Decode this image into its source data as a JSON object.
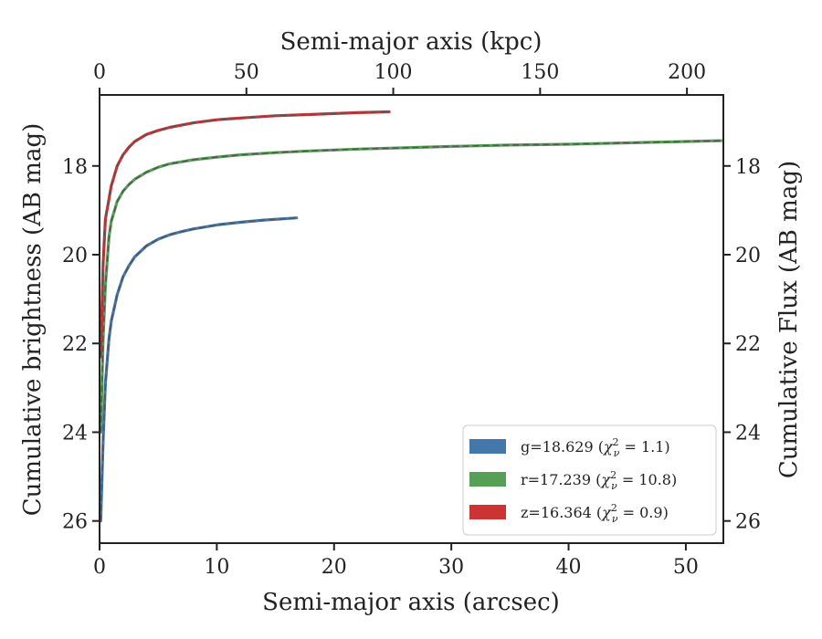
{
  "chart_data": {
    "type": "line",
    "xlabel": "Semi-major axis (arcsec)",
    "x2label": "Semi-major axis (kpc)",
    "ylabel": "Cumulative brightness (AB mag)",
    "y2label": "Cumulative Flux (AB mag)",
    "xlim": [
      0,
      53.2
    ],
    "x2lim": [
      0,
      212.4
    ],
    "ylim": [
      26.5,
      16.4
    ],
    "y_inverted": true,
    "x_ticks": [
      "0",
      "10",
      "20",
      "30",
      "40",
      "50"
    ],
    "x_tick_values": [
      0,
      10,
      20,
      30,
      40,
      50
    ],
    "x2_ticks": [
      "0",
      "50",
      "100",
      "150",
      "200"
    ],
    "x2_tick_values": [
      0,
      50,
      100,
      150,
      200
    ],
    "y_ticks": [
      "18",
      "20",
      "22",
      "24",
      "26"
    ],
    "y_tick_values": [
      18,
      20,
      22,
      24,
      26
    ],
    "legend_position": "lower-right",
    "series": [
      {
        "name": "g=18.629 (χ²ν = 1.1)",
        "legend": {
          "main": "g=18.629 (",
          "chi": "χ",
          "sup": "2",
          "sub": "ν",
          "rest": " = 1.1)"
        },
        "color": "#4477aa",
        "x": [
          0.1,
          0.3,
          0.5,
          0.8,
          1.0,
          1.5,
          2.0,
          2.5,
          3.0,
          4.0,
          5.0,
          6.0,
          7.0,
          8.0,
          10.0,
          12.0,
          14.0,
          16.8
        ],
        "y": [
          26.0,
          24.2,
          22.9,
          21.9,
          21.5,
          20.9,
          20.5,
          20.25,
          20.05,
          19.8,
          19.65,
          19.55,
          19.48,
          19.42,
          19.33,
          19.27,
          19.22,
          19.17
        ]
      },
      {
        "name": "r=17.239 (χ²ν = 10.8)",
        "legend": {
          "main": "r=17.239 (",
          "chi": "χ",
          "sup": "2",
          "sub": "ν",
          "rest": " = 10.8)"
        },
        "color": "#55a055",
        "x": [
          0.1,
          0.3,
          0.5,
          0.8,
          1.0,
          1.5,
          2.0,
          2.5,
          3.0,
          4.0,
          5.0,
          6.0,
          8.0,
          10.0,
          12.0,
          15.0,
          18.0,
          22.0,
          26.0,
          30.0,
          35.0,
          40.0,
          45.0,
          50.0,
          53.0
        ],
        "y": [
          24.0,
          21.9,
          20.7,
          19.6,
          19.25,
          18.8,
          18.57,
          18.42,
          18.3,
          18.14,
          18.03,
          17.95,
          17.86,
          17.8,
          17.75,
          17.7,
          17.66,
          17.62,
          17.59,
          17.56,
          17.53,
          17.51,
          17.48,
          17.45,
          17.43
        ]
      },
      {
        "name": "z=16.364 (χ²ν = 0.9)",
        "legend": {
          "main": "z=16.364 (",
          "chi": "χ",
          "sup": "2",
          "sub": "ν",
          "rest": " = 0.9)"
        },
        "color": "#cc3333",
        "x": [
          0.1,
          0.3,
          0.5,
          0.8,
          1.0,
          1.5,
          2.0,
          2.5,
          3.0,
          4.0,
          5.0,
          6.0,
          8.0,
          10.0,
          12.0,
          15.0,
          18.0,
          20.0,
          22.0,
          24.7
        ],
        "y": [
          22.3,
          20.2,
          19.2,
          18.75,
          18.45,
          18.0,
          17.75,
          17.58,
          17.45,
          17.29,
          17.2,
          17.13,
          17.03,
          16.96,
          16.92,
          16.87,
          16.84,
          16.82,
          16.8,
          16.78
        ]
      }
    ]
  }
}
